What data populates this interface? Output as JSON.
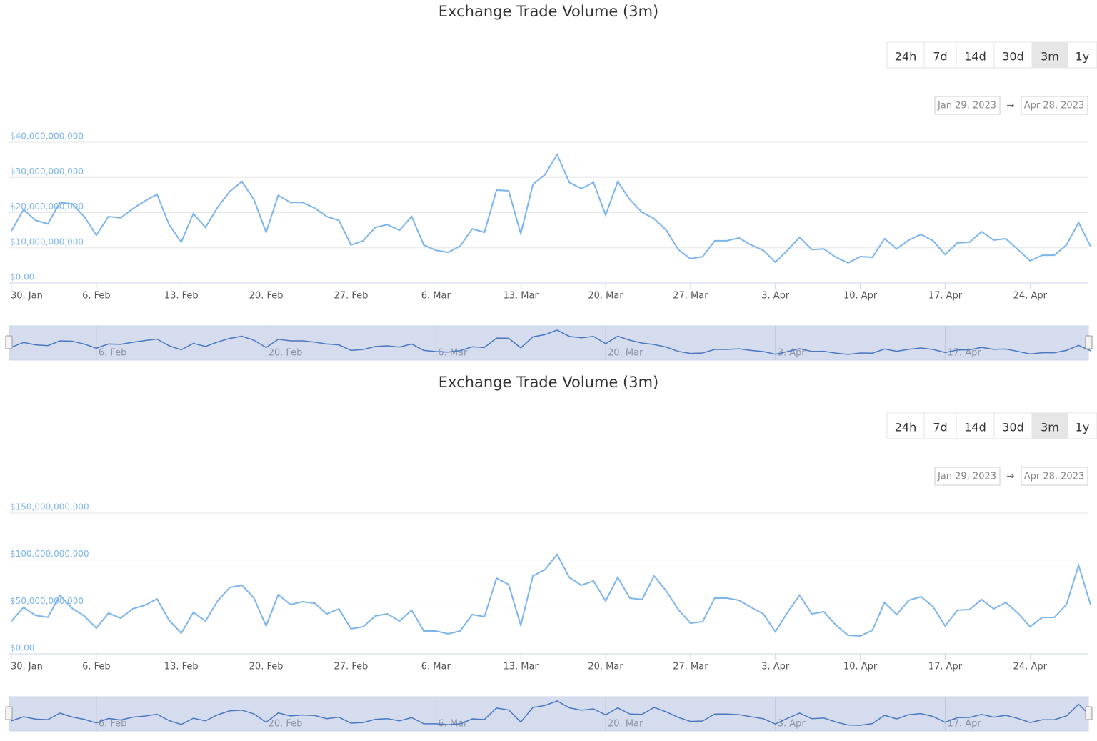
{
  "chart_data": [
    {
      "type": "line",
      "title": "Exchange Trade Volume (3m)",
      "range_buttons": [
        "24h",
        "7d",
        "14d",
        "30d",
        "3m",
        "1y"
      ],
      "selected_range": 4,
      "date_from": "Jan 29, 2023",
      "date_separator": "→",
      "date_to": "Apr 28, 2023",
      "categories": [
        "30. Jan",
        null,
        null,
        null,
        null,
        null,
        null,
        "6. Feb",
        null,
        null,
        null,
        null,
        null,
        null,
        "13. Feb",
        null,
        null,
        null,
        null,
        null,
        null,
        "20. Feb",
        null,
        null,
        null,
        null,
        null,
        null,
        "27. Feb",
        null,
        null,
        null,
        null,
        null,
        null,
        "6. Mar",
        null,
        null,
        null,
        null,
        null,
        null,
        "13. Mar",
        null,
        null,
        null,
        null,
        null,
        null,
        "20. Mar",
        null,
        null,
        null,
        null,
        null,
        null,
        "27. Mar",
        null,
        null,
        null,
        null,
        null,
        null,
        "3. Apr",
        null,
        null,
        null,
        null,
        null,
        null,
        "10. Apr",
        null,
        null,
        null,
        null,
        null,
        null,
        "17. Apr",
        null,
        null,
        null,
        null,
        null,
        null,
        "24. Apr",
        null,
        null,
        null,
        null,
        null
      ],
      "series": [
        {
          "color": "#7cb5ec",
          "values": [
            14800000000.0,
            20900000000.0,
            17800000000.0,
            16800000000.0,
            22900000000.0,
            22500000000.0,
            18900000000.0,
            13600000000.0,
            18900000000.0,
            18500000000.0,
            21100000000.0,
            23300000000.0,
            25200000000.0,
            16600000000.0,
            11600000000.0,
            19700000000.0,
            15800000000.0,
            21500000000.0,
            26000000000.0,
            28800000000.0,
            23700000000.0,
            14400000000.0,
            24900000000.0,
            22900000000.0,
            22900000000.0,
            21300000000.0,
            18900000000.0,
            17800000000.0,
            10800000000.0,
            12000000000.0,
            15800000000.0,
            16600000000.0,
            15000000000.0,
            18900000000.0,
            10800000000.0,
            9300000000.0,
            8700000000.0,
            10500000000.0,
            15400000000.0,
            14400000000.0,
            26400000000.0,
            26200000000.0,
            14000000000.0,
            28000000000.0,
            30800000000.0,
            36500000000.0,
            28600000000.0,
            26800000000.0,
            28600000000.0,
            19300000000.0,
            28800000000.0,
            23700000000.0,
            20100000000.0,
            18300000000.0,
            15000000000.0,
            9500000000.0,
            6900000000.0,
            7500000000.0,
            12000000000.0,
            12000000000.0,
            12800000000.0,
            10800000000.0,
            9300000000.0,
            5900000000.0,
            9300000000.0,
            13000000000.0,
            9500000000.0,
            9700000000.0,
            7300000000.0,
            5700000000.0,
            7500000000.0,
            7300000000.0,
            12600000000.0,
            9700000000.0,
            12200000000.0,
            13800000000.0,
            12000000000.0,
            8100000000.0,
            11400000000.0,
            11600000000.0,
            14600000000.0,
            12200000000.0,
            12600000000.0,
            9500000000.0,
            6300000000.0,
            7900000000.0,
            7900000000.0,
            10800000000.0,
            17200000000.0,
            10300000000.0
          ]
        }
      ],
      "ylim": [
        0,
        40000000000
      ],
      "yticks": [
        {
          "value": 0,
          "label": "$0.00"
        },
        {
          "value": 10000000000,
          "label": "$10,000,000,000"
        },
        {
          "value": 20000000000,
          "label": "$20,000,000,000"
        },
        {
          "value": 30000000000,
          "label": "$30,000,000,000"
        },
        {
          "value": 40000000000,
          "label": "$40,000,000,000"
        }
      ],
      "grid": true,
      "navigator_labels": [
        "6. Feb",
        "20. Feb",
        "6. Mar",
        "20. Mar",
        "3. Apr",
        "17. Apr"
      ]
    },
    {
      "type": "line",
      "title": "Exchange Trade Volume (3m)",
      "range_buttons": [
        "24h",
        "7d",
        "14d",
        "30d",
        "3m",
        "1y"
      ],
      "selected_range": 4,
      "date_from": "Jan 29, 2023",
      "date_separator": "→",
      "date_to": "Apr 28, 2023",
      "categories": [
        "30. Jan",
        null,
        null,
        null,
        null,
        null,
        null,
        "6. Feb",
        null,
        null,
        null,
        null,
        null,
        null,
        "13. Feb",
        null,
        null,
        null,
        null,
        null,
        null,
        "20. Feb",
        null,
        null,
        null,
        null,
        null,
        null,
        "27. Feb",
        null,
        null,
        null,
        null,
        null,
        null,
        "6. Mar",
        null,
        null,
        null,
        null,
        null,
        null,
        "13. Mar",
        null,
        null,
        null,
        null,
        null,
        null,
        "20. Mar",
        null,
        null,
        null,
        null,
        null,
        null,
        "27. Mar",
        null,
        null,
        null,
        null,
        null,
        null,
        "3. Apr",
        null,
        null,
        null,
        null,
        null,
        null,
        "10. Apr",
        null,
        null,
        null,
        null,
        null,
        null,
        "17. Apr",
        null,
        null,
        null,
        null,
        null,
        null,
        "24. Apr",
        null,
        null,
        null,
        null,
        null
      ],
      "series": [
        {
          "color": "#7cb5ec",
          "values": [
            35000000000.0,
            49500000000.0,
            41000000000.0,
            39000000000.0,
            62500000000.0,
            48700000000.0,
            40400000000.0,
            27400000000.0,
            43400000000.0,
            38000000000.0,
            48000000000.0,
            51800000000.0,
            58600000000.0,
            35800000000.0,
            22000000000.0,
            44200000000.0,
            35000000000.0,
            56400000000.0,
            70800000000.0,
            73100000000.0,
            59400000000.0,
            29700000000.0,
            63200000000.0,
            52600000000.0,
            55600000000.0,
            54100000000.0,
            42600000000.0,
            48000000000.0,
            26700000000.0,
            28900000000.0,
            40400000000.0,
            42600000000.0,
            35000000000.0,
            46500000000.0,
            24400000000.0,
            24400000000.0,
            21300000000.0,
            24400000000.0,
            41900000000.0,
            39600000000.0,
            80700000000.0,
            73900000000.0,
            30500000000.0,
            83000000000.0,
            89900000000.0,
            105900000000.0,
            81500000000.0,
            73100000000.0,
            77700000000.0,
            56400000000.0,
            81500000000.0,
            59400000000.0,
            57900000000.0,
            83000000000.0,
            67000000000.0,
            47200000000.0,
            32700000000.0,
            34300000000.0,
            59400000000.0,
            59400000000.0,
            57100000000.0,
            49500000000.0,
            42600000000.0,
            23600000000.0,
            44200000000.0,
            62500000000.0,
            42600000000.0,
            44900000000.0,
            30500000000.0,
            19800000000.0,
            19000000000.0,
            25100000000.0,
            54800000000.0,
            41900000000.0,
            57100000000.0,
            60900000000.0,
            50300000000.0,
            29700000000.0,
            46500000000.0,
            47200000000.0,
            57900000000.0,
            48000000000.0,
            54800000000.0,
            43400000000.0,
            28900000000.0,
            38800000000.0,
            38800000000.0,
            52600000000.0,
            94400000000.0,
            51800000000.0
          ]
        }
      ],
      "ylim": [
        0,
        150000000000
      ],
      "yticks": [
        {
          "value": 0,
          "label": "$0.00"
        },
        {
          "value": 50000000000,
          "label": "$50,000,000,000"
        },
        {
          "value": 100000000000,
          "label": "$100,000,000,000"
        },
        {
          "value": 150000000000,
          "label": "$150,000,000,000"
        }
      ],
      "grid": true,
      "navigator_labels": [
        "6. Feb",
        "20. Feb",
        "6. Mar",
        "20. Mar",
        "3. Apr",
        "17. Apr"
      ]
    }
  ]
}
